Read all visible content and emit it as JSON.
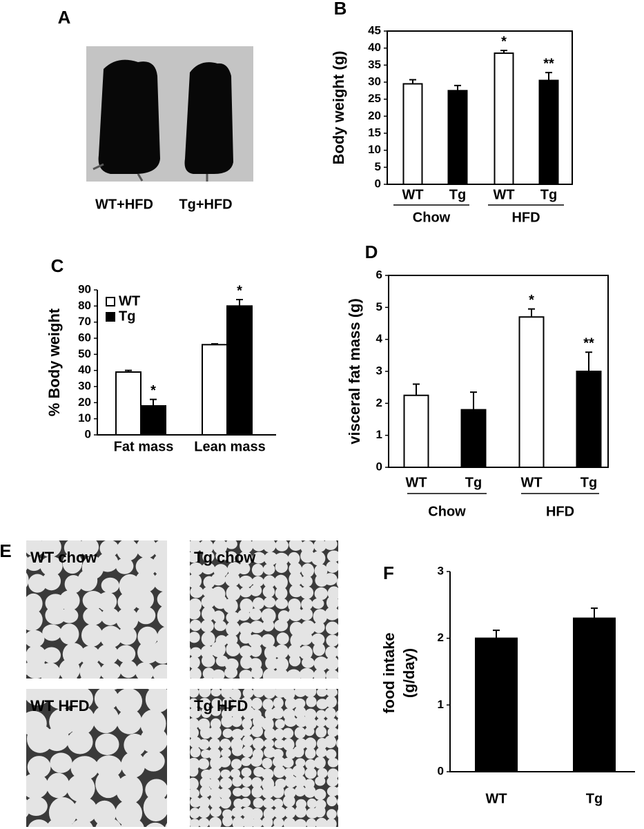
{
  "photo": {
    "panel": "A",
    "labels": [
      "WT+HFD",
      "Tg+HFD"
    ]
  },
  "histology": {
    "panel": "E",
    "labels": [
      "WT chow",
      "Tg chow",
      "WT HFD",
      "Tg HFD"
    ]
  },
  "chart_data": [
    {
      "type": "bar",
      "panel": "B",
      "ylabel": "Body weight (g)",
      "categories": [
        "WT",
        "Tg",
        "WT",
        "Tg"
      ],
      "group_labels": [
        "Chow",
        "HFD"
      ],
      "values": [
        29.5,
        27.5,
        38.5,
        30.5
      ],
      "errors": [
        1.2,
        1.5,
        0.8,
        2.3
      ],
      "annotations": [
        null,
        null,
        "*",
        "**"
      ],
      "colors": [
        "#ffffff",
        "#000000",
        "#ffffff",
        "#000000"
      ],
      "ylim": [
        0,
        45
      ],
      "yticks": [
        0,
        5,
        10,
        15,
        20,
        25,
        30,
        35,
        40,
        45
      ]
    },
    {
      "type": "grouped-bar",
      "panel": "C",
      "ylabel": "% Body weight",
      "categories": [
        "Fat mass",
        "Lean mass"
      ],
      "legend": "top-left",
      "series": [
        {
          "name": "WT",
          "color": "#ffffff",
          "values": [
            39,
            56
          ],
          "errors": [
            1,
            0.5
          ],
          "annotations": [
            null,
            null
          ]
        },
        {
          "name": "Tg",
          "color": "#000000",
          "values": [
            18,
            80
          ],
          "errors": [
            4,
            4
          ],
          "annotations": [
            "*",
            "*"
          ]
        }
      ],
      "ylim": [
        0,
        90
      ],
      "yticks": [
        0,
        10,
        20,
        30,
        40,
        50,
        60,
        70,
        80,
        90
      ]
    },
    {
      "type": "bar",
      "panel": "D",
      "ylabel": "visceral fat mass (g)",
      "categories": [
        "WT",
        "Tg",
        "WT",
        "Tg"
      ],
      "group_labels": [
        "Chow",
        "HFD"
      ],
      "values": [
        2.25,
        1.8,
        4.7,
        3.0
      ],
      "errors": [
        0.35,
        0.55,
        0.25,
        0.6
      ],
      "annotations": [
        null,
        null,
        "*",
        "**"
      ],
      "colors": [
        "#ffffff",
        "#000000",
        "#ffffff",
        "#000000"
      ],
      "ylim": [
        0,
        6
      ],
      "yticks": [
        0,
        1,
        2,
        3,
        4,
        5,
        6
      ]
    },
    {
      "type": "bar",
      "panel": "F",
      "ylabel": [
        "food intake",
        "(g/day)"
      ],
      "categories": [
        "WT",
        "Tg"
      ],
      "values": [
        2.0,
        2.3
      ],
      "errors": [
        0.12,
        0.15
      ],
      "annotations": [
        null,
        null
      ],
      "colors": [
        "#000000",
        "#000000"
      ],
      "ylim": [
        0,
        3
      ],
      "yticks": [
        0,
        1,
        2,
        3
      ]
    }
  ]
}
